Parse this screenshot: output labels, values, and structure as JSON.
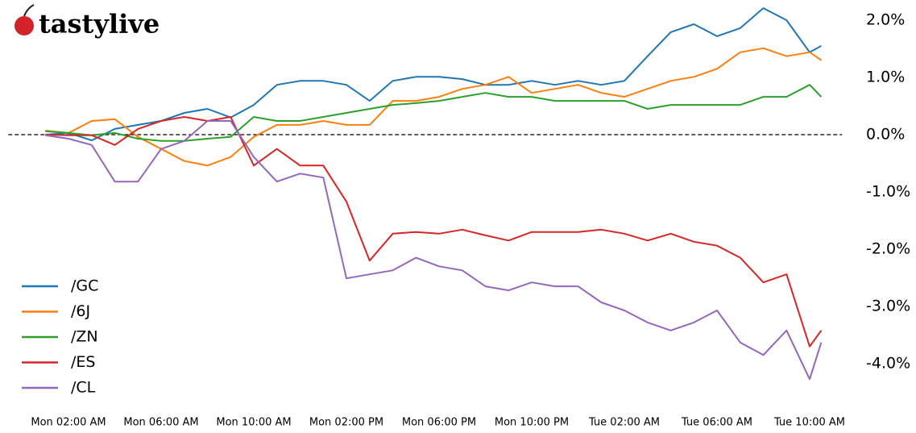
{
  "brand": "tastylive",
  "chart_data": {
    "type": "line",
    "x": [
      1,
      2,
      3,
      4,
      5,
      6,
      7,
      8,
      9,
      10,
      11,
      12,
      13,
      14,
      15,
      16,
      17,
      18,
      19,
      20,
      21,
      22,
      23,
      24,
      25,
      26,
      27,
      28,
      29,
      30,
      31,
      32,
      33,
      34,
      34.5
    ],
    "series": [
      {
        "name": "/GC",
        "color": "#1f77b4",
        "values": [
          0,
          0.03,
          -0.1,
          0.1,
          0.17,
          0.24,
          0.38,
          0.45,
          0.3,
          0.52,
          0.87,
          0.94,
          0.94,
          0.87,
          0.59,
          0.94,
          1.01,
          1.01,
          0.97,
          0.87,
          0.87,
          0.94,
          0.87,
          0.94,
          0.87,
          0.94,
          1.37,
          1.79,
          1.93,
          1.72,
          1.86,
          2.21,
          2.0,
          1.44,
          1.55
        ]
      },
      {
        "name": "/6J",
        "color": "#ff7f0e",
        "values": [
          0.07,
          0.03,
          0.24,
          0.27,
          -0.04,
          -0.25,
          -0.46,
          -0.54,
          -0.39,
          -0.04,
          0.17,
          0.17,
          0.24,
          0.17,
          0.17,
          0.59,
          0.59,
          0.66,
          0.8,
          0.87,
          1.01,
          0.73,
          0.8,
          0.87,
          0.73,
          0.66,
          0.8,
          0.94,
          1.01,
          1.15,
          1.44,
          1.51,
          1.37,
          1.44,
          1.3
        ]
      },
      {
        "name": "/ZN",
        "color": "#2ca02c",
        "values": [
          0.06,
          0.03,
          -0.01,
          0.03,
          -0.07,
          -0.11,
          -0.11,
          -0.07,
          -0.04,
          0.31,
          0.24,
          0.24,
          0.31,
          0.38,
          0.45,
          0.52,
          0.55,
          0.59,
          0.66,
          0.73,
          0.66,
          0.66,
          0.59,
          0.59,
          0.59,
          0.59,
          0.45,
          0.52,
          0.52,
          0.52,
          0.52,
          0.66,
          0.66,
          0.87,
          0.66
        ]
      },
      {
        "name": "/ES",
        "color": "#d62728",
        "values": [
          0,
          -0.01,
          -0.01,
          -0.18,
          0.1,
          0.24,
          0.31,
          0.24,
          0.31,
          -0.54,
          -0.25,
          -0.54,
          -0.54,
          -1.17,
          -2.2,
          -1.73,
          -1.7,
          -1.73,
          -1.66,
          -1.76,
          -1.85,
          -1.7,
          -1.7,
          -1.7,
          -1.66,
          -1.73,
          -1.85,
          -1.73,
          -1.87,
          -1.94,
          -2.15,
          -2.58,
          -2.44,
          -3.7,
          -3.42
        ]
      },
      {
        "name": "/CL",
        "color": "#9467bd",
        "values": [
          -0.01,
          -0.07,
          -0.18,
          -0.82,
          -0.82,
          -0.25,
          -0.11,
          0.24,
          0.24,
          -0.39,
          -0.82,
          -0.68,
          -0.75,
          -2.51,
          -2.44,
          -2.37,
          -2.15,
          -2.3,
          -2.37,
          -2.65,
          -2.72,
          -2.58,
          -2.65,
          -2.65,
          -2.93,
          -3.07,
          -3.28,
          -3.42,
          -3.28,
          -3.07,
          -3.63,
          -3.85,
          -3.42,
          -4.27,
          -3.63
        ]
      }
    ],
    "xlim": [
      -0.6,
      35.4
    ],
    "xticks": [
      {
        "value": 2,
        "label": "Mon 02:00 AM"
      },
      {
        "value": 6,
        "label": "Mon 06:00 AM"
      },
      {
        "value": 10,
        "label": "Mon 10:00 AM"
      },
      {
        "value": 14,
        "label": "Mon 02:00 PM"
      },
      {
        "value": 18,
        "label": "Mon 06:00 PM"
      },
      {
        "value": 22,
        "label": "Mon 10:00 PM"
      },
      {
        "value": 26,
        "label": "Tue 02:00 AM"
      },
      {
        "value": 30,
        "label": "Tue 06:00 AM"
      },
      {
        "value": 34,
        "label": "Tue 10:00 AM"
      }
    ],
    "ylim": [
      -4.62,
      2.35
    ],
    "yticks": [
      {
        "value": 2,
        "label": "2.0%"
      },
      {
        "value": 1,
        "label": "1.0%"
      },
      {
        "value": 0,
        "label": "0.0%"
      },
      {
        "value": -1,
        "label": "-1.0%"
      },
      {
        "value": -2,
        "label": "-2.0%"
      },
      {
        "value": -3,
        "label": "-3.0%"
      },
      {
        "value": -4,
        "label": "-4.0%"
      }
    ],
    "hline": 0,
    "legend": "lower left"
  }
}
